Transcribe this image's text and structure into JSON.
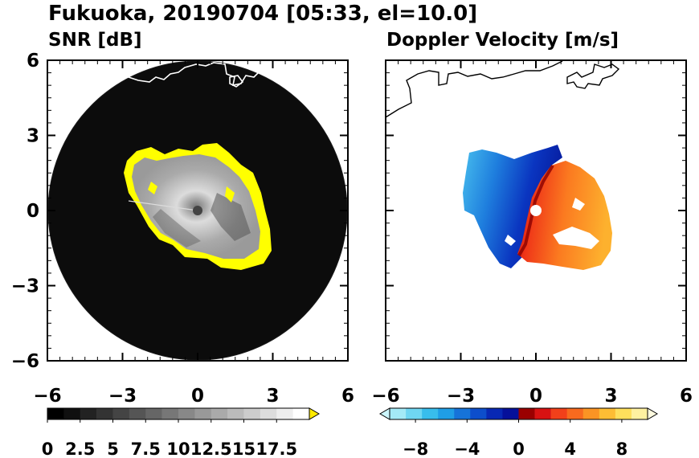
{
  "figure": {
    "title": "Fukuoka, 20190704 [05:33, el=10.0]"
  },
  "chart_data": [
    {
      "type": "heatmap",
      "title": "SNR [dB]",
      "xlim": [
        -6,
        6
      ],
      "ylim": [
        -6,
        6
      ],
      "x_ticks": [
        "−6",
        "−3",
        "0",
        "3",
        "6"
      ],
      "y_ticks": [
        "6",
        "3",
        "0",
        "−3",
        "−6"
      ],
      "range_circle_radius": 6,
      "colorbar": {
        "range": [
          0,
          20
        ],
        "ticks": [
          0,
          2.5,
          5,
          7.5,
          10,
          12.5,
          15,
          17.5
        ],
        "tick_labels": [
          "0",
          "2.5",
          "5",
          "7.5",
          "10",
          "12.5",
          "15",
          "17.5"
        ],
        "extend": "max",
        "colors": [
          "#000000",
          "#101010",
          "#222222",
          "#333333",
          "#444444",
          "#555555",
          "#666666",
          "#777777",
          "#888888",
          "#999999",
          "#aaaaaa",
          "#bbbbbb",
          "#cccccc",
          "#dddddd",
          "#eeeeee",
          "#ffffff"
        ],
        "over_color": "#ffea00"
      },
      "background_color": "#0c0c0c",
      "echo_edge_color": "#ffff00",
      "coastline_color": "#ffffff"
    },
    {
      "type": "heatmap",
      "title": "Doppler Velocity [m/s]",
      "xlim": [
        -6,
        6
      ],
      "ylim": [
        -6,
        6
      ],
      "x_ticks": [
        "−6",
        "−3",
        "0",
        "3",
        "6"
      ],
      "y_ticks": [],
      "colorbar": {
        "range": [
          -10,
          10
        ],
        "ticks": [
          -8,
          -4,
          0,
          4,
          8
        ],
        "tick_labels": [
          "−8",
          "−4",
          "0",
          "4",
          "8"
        ],
        "extend": "both",
        "colors": [
          "#a4eaf7",
          "#6fd6f2",
          "#38bdec",
          "#1f9ee6",
          "#1673d9",
          "#0d4ecb",
          "#0828b4",
          "#06109a",
          "#9a0000",
          "#d81212",
          "#f2401a",
          "#f86a1e",
          "#fb9424",
          "#fdbd34",
          "#fedf5c",
          "#fff1a0"
        ],
        "under_color": "#ccf6fc",
        "over_color": "#fffbe0"
      },
      "coastline_color": "#000000"
    }
  ]
}
